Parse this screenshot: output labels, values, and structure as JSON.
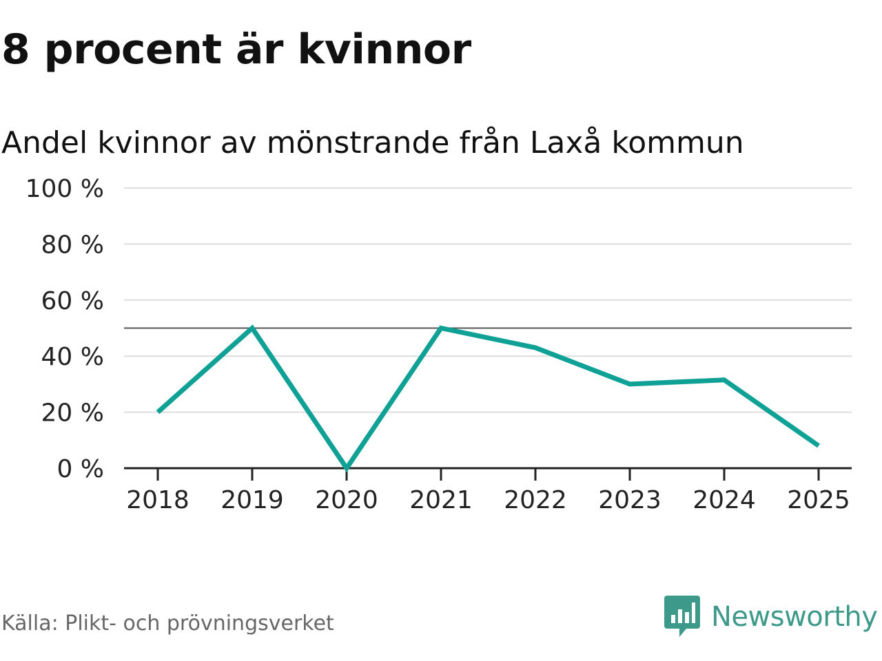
{
  "headline": "8 procent är kvinnor",
  "source": "Källa: Plikt- och prövningsverket",
  "brand": {
    "name": "Newsworthy",
    "icon": "newsworthy-logo-icon",
    "color": "#3d9a8a"
  },
  "colors": {
    "line": "#0fa196",
    "grid": "#dddddd",
    "reference": "#555555",
    "axis": "#222222"
  },
  "chart_data": {
    "type": "line",
    "title": "Andel kvinnor av mönstrande från Laxå kommun",
    "xlabel": "",
    "ylabel": "",
    "categories": [
      "2018",
      "2019",
      "2020",
      "2021",
      "2022",
      "2023",
      "2024",
      "2025"
    ],
    "series": [
      {
        "name": "Andel kvinnor",
        "values": [
          20,
          50,
          0,
          50,
          43,
          30,
          31.5,
          8
        ]
      }
    ],
    "ylim": [
      0,
      100
    ],
    "yticks": [
      0,
      20,
      40,
      60,
      80,
      100
    ],
    "ytick_labels": [
      "0 %",
      "20 %",
      "40 %",
      "60 %",
      "80 %",
      "100 %"
    ],
    "reference_line": 50,
    "grid": true,
    "legend": "none"
  }
}
